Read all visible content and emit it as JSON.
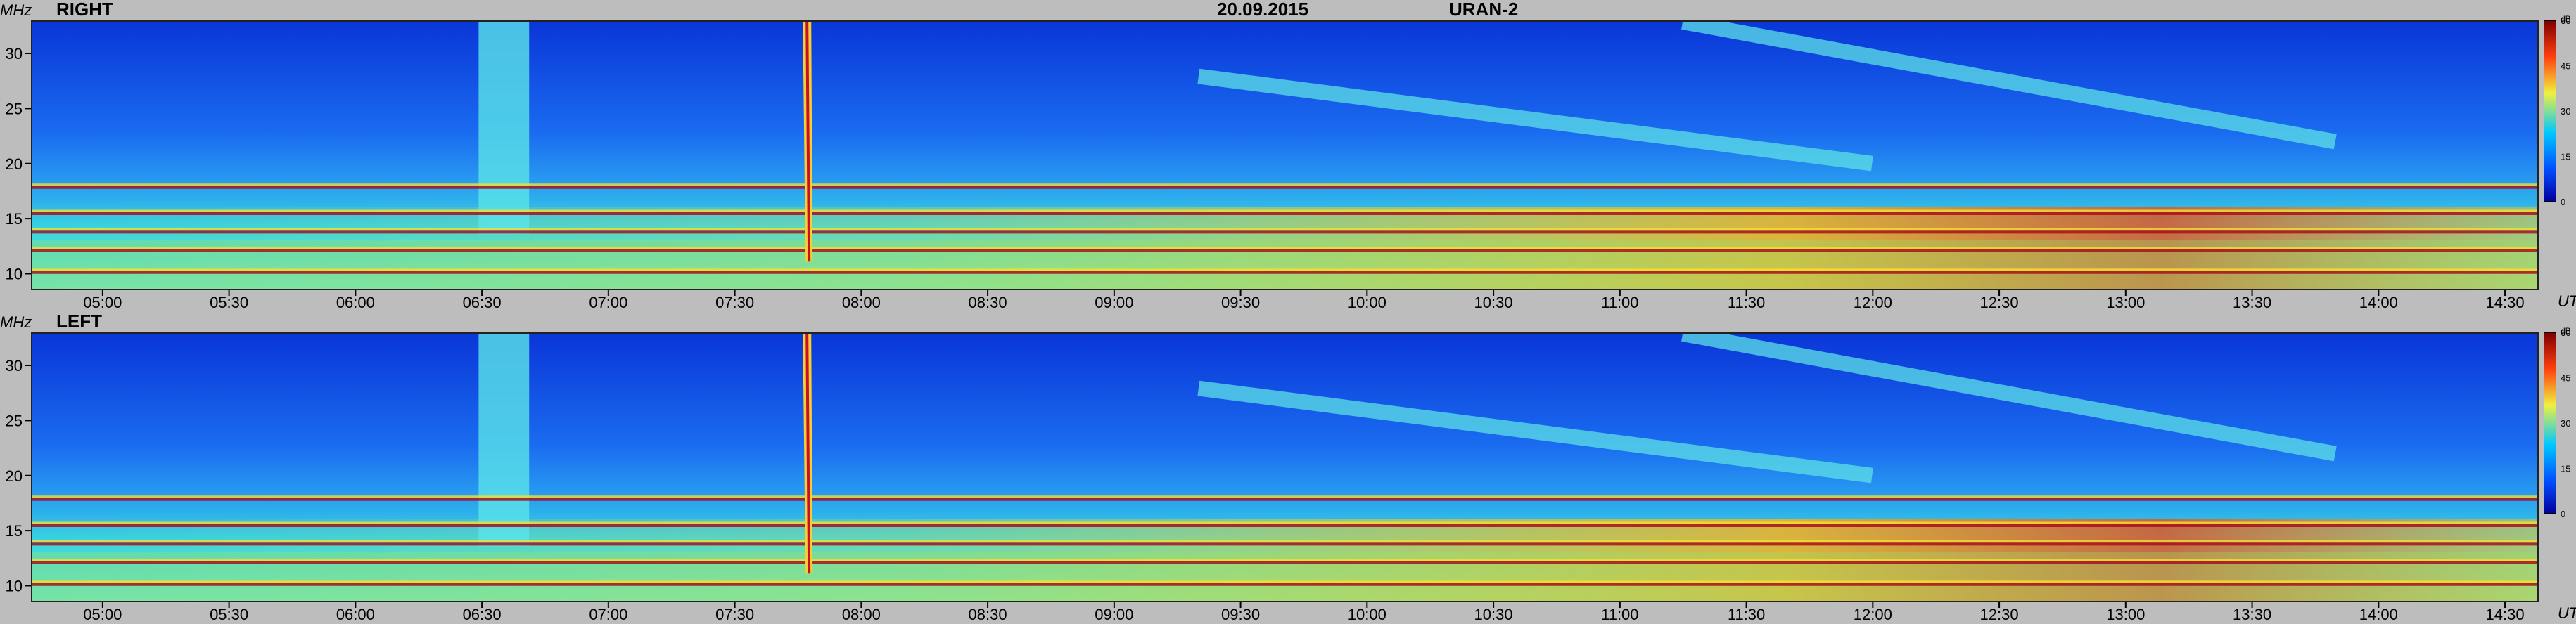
{
  "header": {
    "date": "20.09.2015",
    "instrument": "URAN-2"
  },
  "panels": [
    {
      "title": "RIGHT"
    },
    {
      "title": "LEFT"
    }
  ],
  "axes": {
    "y_unit": "MHz",
    "x_unit": "UT",
    "colorbar_unit": "dB"
  },
  "colors": {
    "background": "#bdbdbd",
    "low": "#0a3de0",
    "mid": "#22c8e8",
    "high": "#f2e030",
    "max": "#c8102e"
  },
  "chart_data": {
    "type": "heatmap",
    "title": "20.09.2015",
    "subtitle": "URAN-2",
    "xlabel": "UT",
    "ylabel": "MHz",
    "x_range": [
      "04:43",
      "14:38"
    ],
    "y_range": [
      8.5,
      33
    ],
    "x_ticks": [
      "05:00",
      "05:30",
      "06:00",
      "06:30",
      "07:00",
      "07:30",
      "08:00",
      "08:30",
      "09:00",
      "09:30",
      "10:00",
      "10:30",
      "11:00",
      "11:30",
      "12:00",
      "12:30",
      "13:00",
      "13:30",
      "14:00",
      "14:30"
    ],
    "y_ticks": [
      10,
      15,
      20,
      25,
      30
    ],
    "colorbar": {
      "range": [
        0,
        60
      ],
      "ticks": [
        0,
        15,
        30,
        45,
        60
      ]
    },
    "polarizations": [
      "RIGHT",
      "LEFT"
    ],
    "interference_bands_mhz": [
      10,
      12,
      13.7,
      15.4,
      17.8
    ],
    "burst_time": "07:47",
    "enhanced_interval": [
      "06:29",
      "06:41"
    ],
    "drift_features": [
      {
        "start_time": "11:15",
        "start_mhz": 33,
        "end_time": "13:50",
        "end_mhz": 22
      },
      {
        "start_time": "09:20",
        "start_mhz": 28,
        "end_time": "12:00",
        "end_mhz": 20
      }
    ]
  }
}
